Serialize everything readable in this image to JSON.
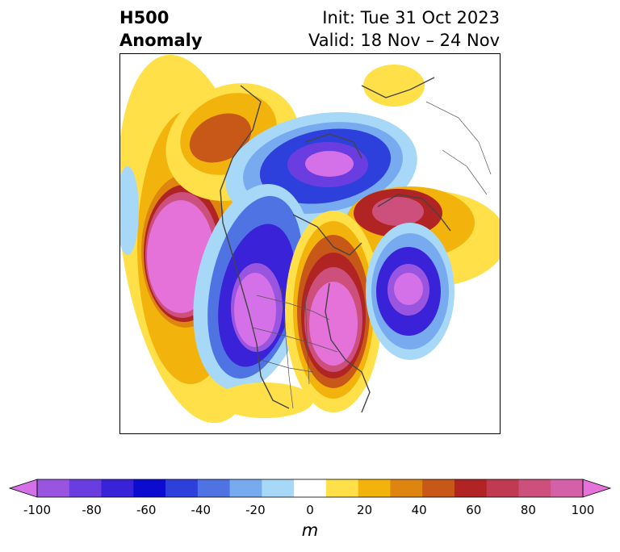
{
  "title": {
    "left_line1": "H500",
    "left_line2": "Anomaly",
    "right_line1": "Init: Tue 31 Oct 2023",
    "right_line2": "Valid: 18 Nov – 24 Nov"
  },
  "colorbar": {
    "label": "m",
    "ticks": [
      "-100",
      "-80",
      "-60",
      "-40",
      "-20",
      "0",
      "20",
      "40",
      "60",
      "80",
      "100"
    ],
    "range": [
      -100,
      100
    ],
    "step": 10,
    "colors": [
      "#d470e8",
      "#9a55e0",
      "#6a3de0",
      "#3a22d8",
      "#0c0cd0",
      "#2e40dc",
      "#5073e4",
      "#78aaf0",
      "#a8d8f8",
      "#ffffff",
      "#ffe048",
      "#f2b40c",
      "#de8510",
      "#c85818",
      "#b02424",
      "#c03a52",
      "#cc4f7c",
      "#d460a8",
      "#e472d8"
    ],
    "extend": "both"
  }
}
